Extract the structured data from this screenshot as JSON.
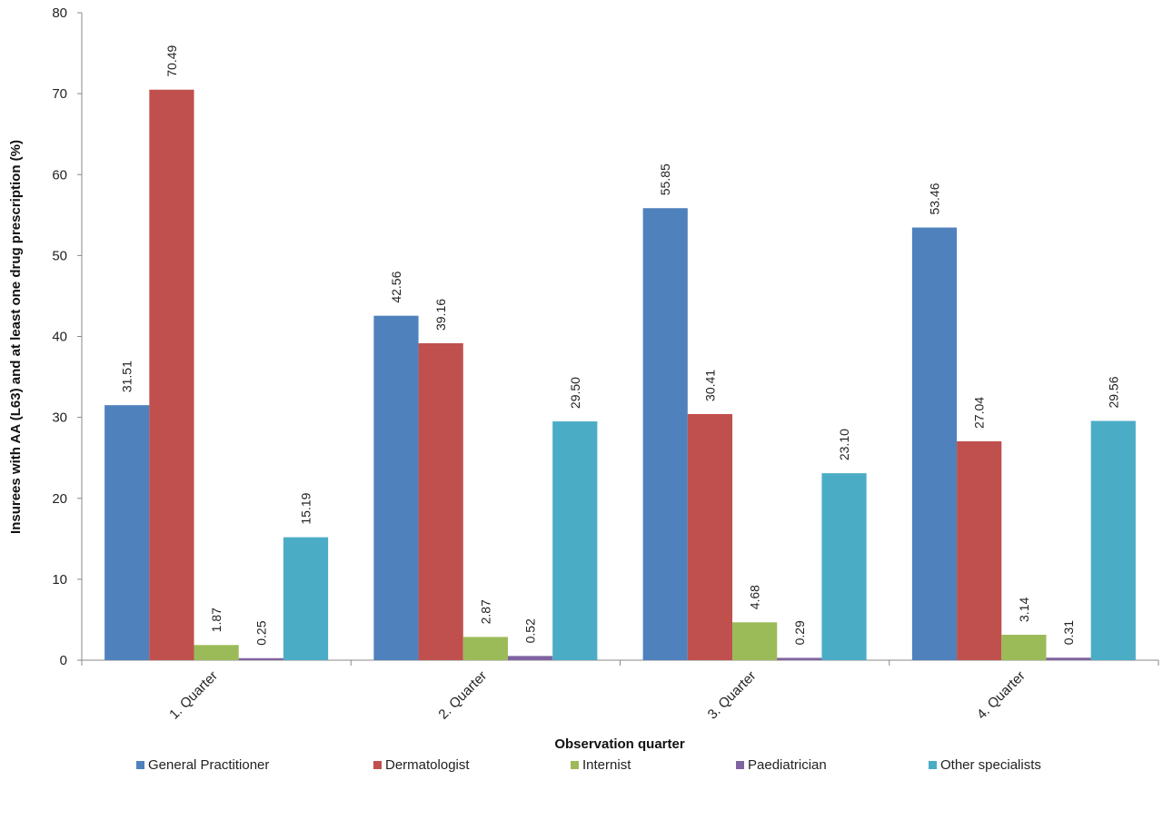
{
  "chart_data": {
    "type": "bar",
    "xlabel": "Observation quarter",
    "ylabel": "Insurees with AA (L63) and at least one  drug prescription (%)",
    "ylim": [
      0,
      80
    ],
    "yticks": [
      0,
      10,
      20,
      30,
      40,
      50,
      60,
      70,
      80
    ],
    "categories": [
      "1. Quarter",
      "2. Quarter",
      "3. Quarter",
      "4. Quarter"
    ],
    "legend_position": "bottom",
    "grid": false,
    "series": [
      {
        "name": "General Practitioner",
        "color": "#4F81BD",
        "values": [
          31.51,
          42.56,
          55.85,
          53.46
        ],
        "labels": [
          "31.51",
          "42.56",
          "55.85",
          "53.46"
        ]
      },
      {
        "name": "Dermatologist",
        "color": "#C0504D",
        "values": [
          70.49,
          39.16,
          30.41,
          27.04
        ],
        "labels": [
          "70.49",
          "39.16",
          "30.41",
          "27.04"
        ]
      },
      {
        "name": "Internist",
        "color": "#9BBB59",
        "values": [
          1.87,
          2.87,
          4.68,
          3.14
        ],
        "labels": [
          "1.87",
          "2.87",
          "4.68",
          "3.14"
        ]
      },
      {
        "name": "Paediatrician",
        "color": "#8064A2",
        "values": [
          0.25,
          0.52,
          0.29,
          0.31
        ],
        "labels": [
          "0.25",
          "0.52",
          "0.29",
          "0.31"
        ]
      },
      {
        "name": "Other specialists",
        "color": "#4BACC6",
        "values": [
          15.19,
          29.5,
          23.1,
          29.56
        ],
        "labels": [
          "15.19",
          "29.50",
          "23.10",
          "29.56"
        ]
      }
    ]
  }
}
